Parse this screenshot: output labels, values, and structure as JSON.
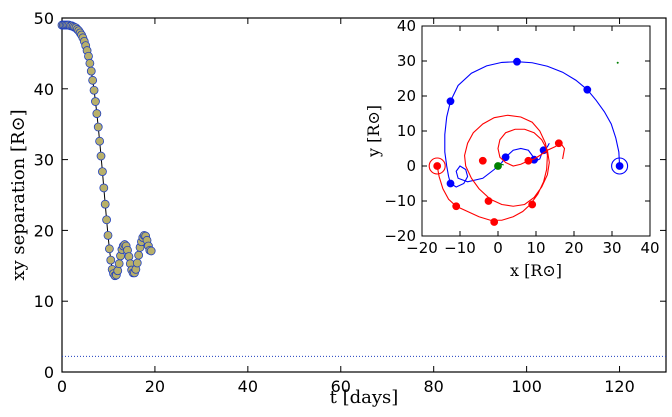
{
  "chart_data": [
    {
      "type": "scatter",
      "xlabel": "t  [days]",
      "ylabel": "xy  separation  [R⊙]",
      "xlim": [
        0,
        130
      ],
      "ylim": [
        0,
        50
      ],
      "xticks": [
        "0",
        "20",
        "40",
        "60",
        "80",
        "100",
        "120"
      ],
      "yticks": [
        "0",
        "10",
        "20",
        "30",
        "40",
        "50"
      ],
      "marker_fill": "#b8b06a",
      "marker_edge": "#1f3fbf",
      "line_color": "#000000",
      "series": [
        {
          "points": [
            [
              0.0,
              49.0
            ],
            [
              0.3,
              49.0
            ],
            [
              0.6,
              49.0
            ],
            [
              0.9,
              49.0
            ],
            [
              1.2,
              49.0
            ],
            [
              1.5,
              49.0
            ],
            [
              1.8,
              48.9
            ],
            [
              2.1,
              48.9
            ],
            [
              2.4,
              48.8
            ],
            [
              2.7,
              48.7
            ],
            [
              3.0,
              48.6
            ],
            [
              3.3,
              48.4
            ],
            [
              3.6,
              48.2
            ],
            [
              3.9,
              47.9
            ],
            [
              4.2,
              47.6
            ],
            [
              4.5,
              47.2
            ],
            [
              4.8,
              46.7
            ],
            [
              5.1,
              46.1
            ],
            [
              5.4,
              45.4
            ],
            [
              5.7,
              44.6
            ],
            [
              6.0,
              43.6
            ],
            [
              6.3,
              42.5
            ],
            [
              6.6,
              41.2
            ],
            [
              6.9,
              39.8
            ],
            [
              7.2,
              38.2
            ],
            [
              7.5,
              36.5
            ],
            [
              7.8,
              34.6
            ],
            [
              8.1,
              32.6
            ],
            [
              8.4,
              30.5
            ],
            [
              8.7,
              28.3
            ],
            [
              9.0,
              26.0
            ],
            [
              9.3,
              23.7
            ],
            [
              9.6,
              21.5
            ],
            [
              9.9,
              19.3
            ],
            [
              10.2,
              17.4
            ],
            [
              10.5,
              15.8
            ],
            [
              10.8,
              14.5
            ],
            [
              11.1,
              13.9
            ],
            [
              11.4,
              13.6
            ],
            [
              11.7,
              13.7
            ],
            [
              12.0,
              14.3
            ],
            [
              12.3,
              15.3
            ],
            [
              12.6,
              16.4
            ],
            [
              12.9,
              17.3
            ],
            [
              13.2,
              17.8
            ],
            [
              13.5,
              18.0
            ],
            [
              13.8,
              17.8
            ],
            [
              14.1,
              17.2
            ],
            [
              14.4,
              16.3
            ],
            [
              14.7,
              15.3
            ],
            [
              15.0,
              14.4
            ],
            [
              15.3,
              14.0
            ],
            [
              15.6,
              14.0
            ],
            [
              15.9,
              14.5
            ],
            [
              16.2,
              15.4
            ],
            [
              16.5,
              16.5
            ],
            [
              16.8,
              17.6
            ],
            [
              17.1,
              18.4
            ],
            [
              17.4,
              19.0
            ],
            [
              17.7,
              19.3
            ],
            [
              18.0,
              19.2
            ],
            [
              18.3,
              18.6
            ],
            [
              18.6,
              17.8
            ],
            [
              18.9,
              17.2
            ],
            [
              19.2,
              17.1
            ]
          ]
        }
      ],
      "reference_line": {
        "y": 2.2,
        "color": "#1f3fbf",
        "style": "dotted"
      }
    },
    {
      "type": "line",
      "xlabel": "x  [R⊙]",
      "ylabel": "y  [R⊙]",
      "xlim": [
        -20,
        40
      ],
      "ylim": [
        -20,
        40
      ],
      "xticks": [
        "−20",
        "−10",
        "0",
        "10",
        "20",
        "30",
        "40"
      ],
      "yticks": [
        "−20",
        "−10",
        "0",
        "10",
        "20",
        "30",
        "40"
      ],
      "series": [
        {
          "color": "#0000ff",
          "points": [
            [
              32,
              0
            ],
            [
              31.8,
              4
            ],
            [
              31,
              8
            ],
            [
              29.8,
              12
            ],
            [
              28,
              15.5
            ],
            [
              25.8,
              18.8
            ],
            [
              23.5,
              21.8
            ],
            [
              20.5,
              24.5
            ],
            [
              17,
              26.8
            ],
            [
              13,
              28.5
            ],
            [
              9,
              29.5
            ],
            [
              5,
              29.8
            ],
            [
              1,
              29.6
            ],
            [
              -3,
              28.6
            ],
            [
              -7,
              26.5
            ],
            [
              -10.5,
              23
            ],
            [
              -12.5,
              18.5
            ],
            [
              -13.5,
              14
            ],
            [
              -14,
              9
            ],
            [
              -14,
              4
            ],
            [
              -13.5,
              0
            ],
            [
              -13,
              -3
            ],
            [
              -12.5,
              -5
            ],
            [
              -11,
              -6
            ],
            [
              -9,
              -5
            ],
            [
              -8,
              -3
            ],
            [
              -8.5,
              -1
            ],
            [
              -10,
              0
            ],
            [
              -11,
              -1.5
            ],
            [
              -10.5,
              -3.5
            ],
            [
              -8,
              -4.5
            ],
            [
              -4,
              -3.5
            ],
            [
              -1,
              -1
            ],
            [
              1,
              1
            ],
            [
              2,
              2.5
            ],
            [
              4,
              4.5
            ],
            [
              6,
              5
            ],
            [
              8,
              4.5
            ],
            [
              9,
              3
            ],
            [
              10,
              1.5
            ],
            [
              11,
              2
            ],
            [
              11.5,
              3.5
            ],
            [
              12,
              4.5
            ],
            [
              12.5,
              5
            ],
            [
              13,
              5.5
            ],
            [
              13.5,
              6.5
            ]
          ],
          "markers": [
            [
              32,
              0
            ],
            [
              23.5,
              21.8
            ],
            [
              5,
              29.8
            ],
            [
              -12.5,
              18.5
            ],
            [
              -12.5,
              -5
            ],
            [
              2,
              2.5
            ],
            [
              9.5,
              1.8
            ],
            [
              12,
              4.5
            ]
          ],
          "ring": [
            32,
            0
          ]
        },
        {
          "color": "#ff0000",
          "points": [
            [
              -16,
              0
            ],
            [
              -15.5,
              -3
            ],
            [
              -14.5,
              -6.5
            ],
            [
              -13,
              -9.5
            ],
            [
              -11,
              -11.5
            ],
            [
              -8,
              -13
            ],
            [
              -5,
              -14.5
            ],
            [
              -2,
              -15.5
            ],
            [
              1,
              -15.5
            ],
            [
              4,
              -14.5
            ],
            [
              6.5,
              -13
            ],
            [
              8.5,
              -11
            ],
            [
              10.5,
              -8
            ],
            [
              12,
              -4.5
            ],
            [
              12.8,
              -1
            ],
            [
              13,
              3
            ],
            [
              12.5,
              6.5
            ],
            [
              11,
              10
            ],
            [
              9,
              12.5
            ],
            [
              6,
              14
            ],
            [
              2.5,
              14.5
            ],
            [
              -1,
              13.8
            ],
            [
              -4,
              12
            ],
            [
              -6.5,
              9.5
            ],
            [
              -8,
              6.5
            ],
            [
              -8.8,
              3
            ],
            [
              -8.5,
              0
            ],
            [
              -7,
              -3.5
            ],
            [
              -5,
              -6.5
            ],
            [
              -2,
              -9.5
            ],
            [
              1,
              -11
            ],
            [
              4,
              -11.5
            ],
            [
              7,
              -11
            ],
            [
              9.5,
              -9
            ],
            [
              11.5,
              -6
            ],
            [
              13,
              -2.5
            ],
            [
              13.5,
              1
            ],
            [
              13,
              4.5
            ],
            [
              11.5,
              7.5
            ],
            [
              9.5,
              9.5
            ],
            [
              7,
              10.5
            ],
            [
              4.5,
              10.5
            ],
            [
              2,
              9.5
            ],
            [
              0.5,
              7.5
            ],
            [
              0,
              5
            ],
            [
              0.5,
              2.5
            ],
            [
              2,
              1
            ],
            [
              4,
              0
            ],
            [
              6,
              0.5
            ],
            [
              8,
              1.5
            ],
            [
              9.5,
              2
            ],
            [
              11,
              3
            ],
            [
              13,
              4.5
            ],
            [
              15,
              5.5
            ],
            [
              16.5,
              6.5
            ],
            [
              17.5,
              5
            ],
            [
              17,
              2
            ]
          ],
          "markers": [
            [
              -16,
              0
            ],
            [
              -11,
              -11.5
            ],
            [
              -1,
              -16
            ],
            [
              9,
              -11
            ],
            [
              8,
              1.5
            ],
            [
              16,
              6.5
            ],
            [
              -2.5,
              -10
            ],
            [
              -4,
              1.5
            ]
          ],
          "ring": [
            -16,
            0
          ]
        },
        {
          "color": "#008000",
          "points": [
            [
              0,
              0
            ],
            [
              0.8,
              0.5
            ],
            [
              1.5,
              0.3
            ]
          ],
          "markers": [
            [
              0,
              0
            ]
          ],
          "ring": null
        }
      ],
      "stray_point": [
        31.5,
        29.5
      ]
    }
  ]
}
